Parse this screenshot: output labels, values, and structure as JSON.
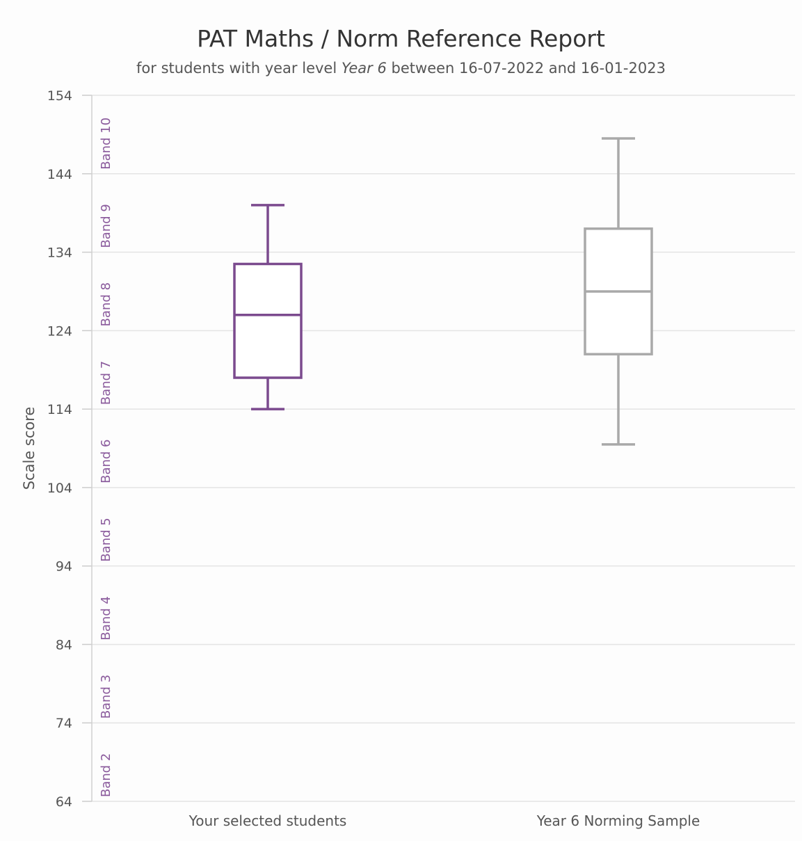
{
  "chart_data": {
    "type": "box",
    "title": "PAT Maths / Norm Reference Report",
    "subtitle": {
      "prefix": "for students with year level",
      "year_level": "Year 6",
      "suffix": "between 16-07-2022 and 16-01-2023"
    },
    "ylabel": "Scale score",
    "xlabel": "",
    "ylim": [
      64,
      154
    ],
    "yticks": [
      154,
      144,
      134,
      124,
      114,
      104,
      94,
      84,
      74,
      64
    ],
    "grid": true,
    "bands": [
      {
        "label": "Band 10",
        "from": 144,
        "to": 154
      },
      {
        "label": "Band 9",
        "from": 134,
        "to": 144
      },
      {
        "label": "Band 8",
        "from": 124,
        "to": 134
      },
      {
        "label": "Band 7",
        "from": 114,
        "to": 124
      },
      {
        "label": "Band 6",
        "from": 104,
        "to": 114
      },
      {
        "label": "Band 5",
        "from": 94,
        "to": 104
      },
      {
        "label": "Band 4",
        "from": 84,
        "to": 94
      },
      {
        "label": "Band 3",
        "from": 74,
        "to": 84
      },
      {
        "label": "Band 2",
        "from": 64,
        "to": 74
      }
    ],
    "categories": [
      "Your selected students",
      "Year 6 Norming Sample"
    ],
    "series": [
      {
        "category": "Your selected students",
        "whisker_low": 114,
        "q1": 118,
        "median": 126,
        "q3": 132.5,
        "whisker_high": 140,
        "color": "#7b4a8e"
      },
      {
        "category": "Year 6 Norming Sample",
        "whisker_low": 109.5,
        "q1": 121,
        "median": 129,
        "q3": 137,
        "whisker_high": 148.5,
        "color": "#a9a9a9"
      }
    ],
    "colors": {
      "band_label": "#8a5a9c",
      "axis_text": "#555555",
      "grid": "#e4e4e4"
    }
  }
}
